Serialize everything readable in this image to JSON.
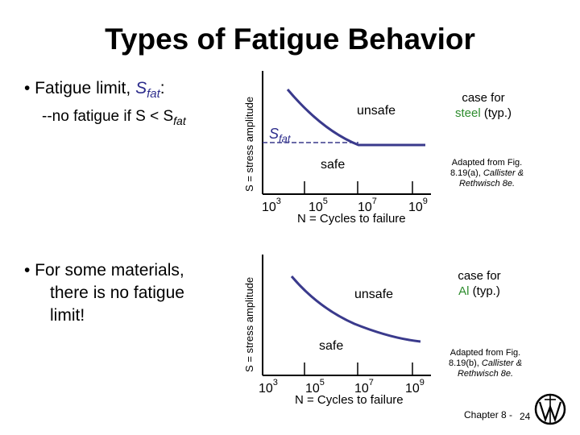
{
  "title": "Types of Fatigue Behavior",
  "bullets": {
    "first": {
      "prefix": "• Fatigue limit, ",
      "symbol_main": "S",
      "symbol_sub": "fat",
      "colon": ":",
      "line2": "--no fatigue if S < S",
      "line2_sub": "fat"
    },
    "second": {
      "line1": "• For some materials,",
      "line2": "there is no fatigue",
      "line3": "limit!"
    }
  },
  "charts": [
    {
      "ylabel": "S = stress amplitude",
      "xlabel": "N = Cycles to failure",
      "ticks": [
        {
          "base": "10",
          "exp": "3"
        },
        {
          "base": "10",
          "exp": "5"
        },
        {
          "base": "10",
          "exp": "7"
        },
        {
          "base": "10",
          "exp": "9"
        }
      ],
      "unsafe_label": "unsafe",
      "safe_label": "safe",
      "threshold_label_main": "S",
      "threshold_label_sub": "fat",
      "material_line1_pre": "case for",
      "material_line2_accent": "steel",
      "material_line2_rest": " (typ.)",
      "note_line1": "Adapted from Fig.",
      "note_line2": "8.19(a), ",
      "note_line2_italic": "Callister &",
      "note_line3": "Rethwisch 8e."
    },
    {
      "ylabel": "S = stress amplitude",
      "xlabel": "N = Cycles to failure",
      "ticks": [
        {
          "base": "10",
          "exp": "3"
        },
        {
          "base": "10",
          "exp": "5"
        },
        {
          "base": "10",
          "exp": "7"
        },
        {
          "base": "10",
          "exp": "9"
        }
      ],
      "unsafe_label": "unsafe",
      "safe_label": "safe",
      "material_line1_pre": "case for",
      "material_line2_accent": "Al",
      "material_line2_rest": " (typ.)",
      "note_line1": "Adapted from Fig.",
      "note_line2": "8.19(b), ",
      "note_line2_italic": "Callister &",
      "note_line3": "Rethwisch 8e."
    }
  ],
  "footer": {
    "chapter": "Chapter 8 -",
    "page": "24"
  },
  "colors": {
    "curve": "#3a3a8c",
    "threshold_dash": "#3a3a8c",
    "accent_material": "#2d8c2d"
  },
  "icons": {
    "logo": "publisher-logo"
  }
}
